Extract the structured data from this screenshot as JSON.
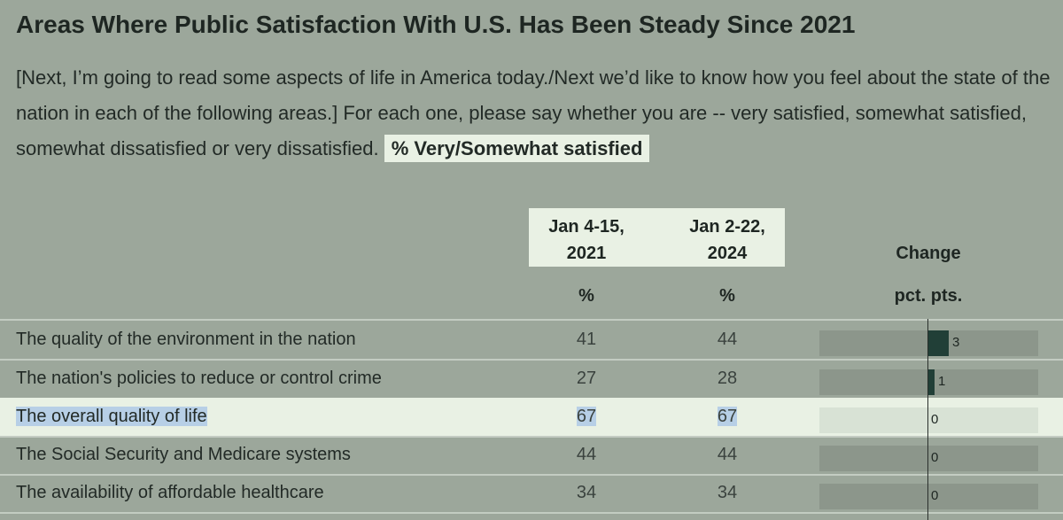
{
  "title": "Areas Where Public Satisfaction With U.S. Has Been Steady Since 2021",
  "question": "[Next, I’m going to read some aspects of life in America today./Next we’d like to know how you feel about the state of the nation in each of the following areas.] For each one, please say whether you are -- very satisfied, somewhat satisfied, somewhat dissatisfied or very dissatisfied.",
  "measure_label": "% Very/Somewhat satisfied",
  "columns": {
    "col1": {
      "line1": "Jan 4-15,",
      "line2": "2021",
      "unit": "%"
    },
    "col2": {
      "line1": "Jan 2-22,",
      "line2": "2024",
      "unit": "%"
    },
    "change": {
      "label": "Change",
      "unit": "pct. pts."
    }
  },
  "colors": {
    "bar": "#213f37",
    "highlight": "#e9f1e4",
    "background": "#9ca79b"
  },
  "chart_data": {
    "type": "table",
    "title": "Areas Where Public Satisfaction With U.S. Has Been Steady Since 2021",
    "columns": [
      "Jan 4-15, 2021",
      "Jan 2-22, 2024",
      "Change"
    ],
    "change_range": [
      -5,
      5
    ],
    "rows": [
      {
        "label": "The quality of the environment in the nation",
        "v2021": "41",
        "v2024": "44",
        "change": 3
      },
      {
        "label": "The nation's policies to reduce or control crime",
        "v2021": "27",
        "v2024": "28",
        "change": 1
      },
      {
        "label": "The overall quality of life",
        "v2021": "67",
        "v2024": "67",
        "change": 0,
        "highlighted": true
      },
      {
        "label": "The Social Security and Medicare systems",
        "v2021": "44",
        "v2024": "44",
        "change": 0
      },
      {
        "label": "The availability of affordable healthcare",
        "v2021": "34",
        "v2024": "34",
        "change": 0
      }
    ]
  }
}
